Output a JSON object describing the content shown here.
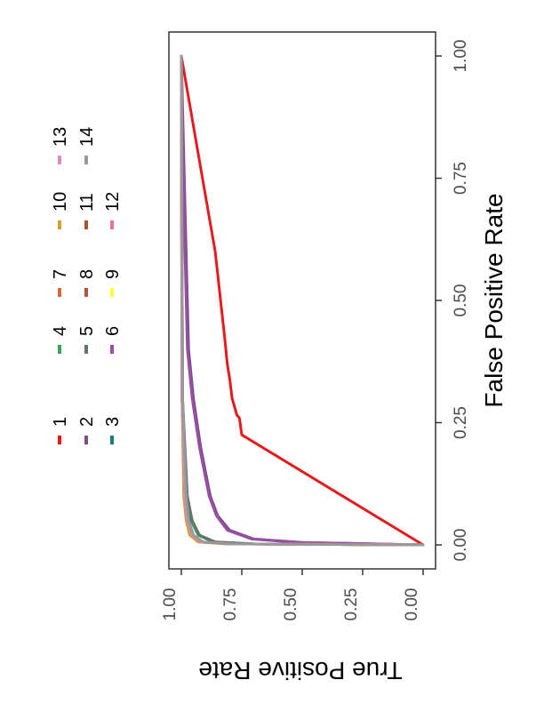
{
  "chart_data": {
    "type": "line",
    "xlabel": "False Positive Rate",
    "ylabel": "True Positive Rate",
    "xlim": [
      0,
      1
    ],
    "ylim": [
      0,
      1
    ],
    "x_ticks": [
      "0.00",
      "0.25",
      "0.50",
      "0.75",
      "1.00"
    ],
    "y_ticks": [
      "0.00",
      "0.25",
      "0.50",
      "0.75",
      "1.00"
    ],
    "grid": false,
    "legend_position": "right",
    "orientation": "rotated 90 degrees clockwise",
    "series": [
      {
        "name": "1",
        "color": "#e41a1c",
        "points": [
          [
            0,
            0
          ],
          [
            0.225,
            0.75
          ],
          [
            0.26,
            0.76
          ],
          [
            0.265,
            0.77
          ],
          [
            0.3,
            0.79
          ],
          [
            0.34,
            0.8
          ],
          [
            0.37,
            0.81
          ],
          [
            0.42,
            0.82
          ],
          [
            0.6,
            0.86
          ],
          [
            0.8,
            0.93
          ],
          [
            1,
            1
          ]
        ]
      },
      {
        "name": "2",
        "color": "#7b4f8a",
        "points": [
          [
            0,
            0
          ],
          [
            0.005,
            0.5
          ],
          [
            0.012,
            0.7
          ],
          [
            0.03,
            0.8
          ],
          [
            0.06,
            0.85
          ],
          [
            0.1,
            0.88
          ],
          [
            0.15,
            0.9
          ],
          [
            0.2,
            0.92
          ],
          [
            0.3,
            0.95
          ],
          [
            0.4,
            0.97
          ],
          [
            0.6,
            0.98
          ],
          [
            0.8,
            0.99
          ],
          [
            1,
            1
          ]
        ]
      },
      {
        "name": "3",
        "color": "#1b7f7f",
        "points": [
          [
            0,
            0
          ],
          [
            0.002,
            0.7
          ],
          [
            0.006,
            0.86
          ],
          [
            0.02,
            0.93
          ],
          [
            0.05,
            0.96
          ],
          [
            0.1,
            0.98
          ],
          [
            0.3,
            0.995
          ],
          [
            1,
            1
          ]
        ]
      },
      {
        "name": "4",
        "color": "#3aa655",
        "points": [
          [
            0,
            0
          ],
          [
            0.002,
            0.72
          ],
          [
            0.006,
            0.87
          ],
          [
            0.02,
            0.93
          ],
          [
            0.04,
            0.95
          ],
          [
            0.08,
            0.97
          ],
          [
            0.12,
            0.985
          ],
          [
            0.3,
            0.995
          ],
          [
            1,
            1
          ]
        ]
      },
      {
        "name": "5",
        "color": "#66756b",
        "points": [
          [
            0,
            0
          ],
          [
            0.002,
            0.71
          ],
          [
            0.006,
            0.86
          ],
          [
            0.02,
            0.925
          ],
          [
            0.05,
            0.955
          ],
          [
            0.1,
            0.975
          ],
          [
            0.3,
            0.995
          ],
          [
            1,
            1
          ]
        ]
      },
      {
        "name": "6",
        "color": "#984ea3",
        "points": [
          [
            0,
            0
          ],
          [
            0.005,
            0.52
          ],
          [
            0.012,
            0.71
          ],
          [
            0.03,
            0.81
          ],
          [
            0.06,
            0.855
          ],
          [
            0.1,
            0.885
          ],
          [
            0.15,
            0.905
          ],
          [
            0.2,
            0.925
          ],
          [
            0.3,
            0.955
          ],
          [
            0.4,
            0.975
          ],
          [
            0.6,
            0.985
          ],
          [
            1,
            1
          ]
        ]
      },
      {
        "name": "7",
        "color": "#d2693c",
        "points": [
          [
            0,
            0
          ],
          [
            0.002,
            0.8
          ],
          [
            0.006,
            0.92
          ],
          [
            0.02,
            0.955
          ],
          [
            0.05,
            0.975
          ],
          [
            0.1,
            0.985
          ],
          [
            0.3,
            0.997
          ],
          [
            1,
            1
          ]
        ]
      },
      {
        "name": "8",
        "color": "#b5543c",
        "points": [
          [
            0,
            0
          ],
          [
            0.002,
            0.8
          ],
          [
            0.006,
            0.92
          ],
          [
            0.02,
            0.955
          ],
          [
            0.05,
            0.975
          ],
          [
            0.1,
            0.985
          ],
          [
            0.3,
            0.997
          ],
          [
            1,
            1
          ]
        ]
      },
      {
        "name": "9",
        "color": "#ffff33",
        "points": [
          [
            0,
            0
          ],
          [
            0.002,
            0.81
          ],
          [
            0.006,
            0.93
          ],
          [
            0.02,
            0.96
          ],
          [
            0.05,
            0.978
          ],
          [
            0.1,
            0.988
          ],
          [
            0.3,
            0.997
          ],
          [
            1,
            1
          ]
        ]
      },
      {
        "name": "10",
        "color": "#d4a02a",
        "points": [
          [
            0,
            0
          ],
          [
            0.002,
            0.82
          ],
          [
            0.006,
            0.93
          ],
          [
            0.02,
            0.965
          ],
          [
            0.05,
            0.98
          ],
          [
            0.1,
            0.99
          ],
          [
            0.3,
            0.997
          ],
          [
            1,
            1
          ]
        ]
      },
      {
        "name": "11",
        "color": "#a65628",
        "points": [
          [
            0,
            0
          ],
          [
            0.002,
            0.8
          ],
          [
            0.006,
            0.92
          ],
          [
            0.02,
            0.955
          ],
          [
            0.05,
            0.975
          ],
          [
            0.1,
            0.985
          ],
          [
            0.3,
            0.997
          ],
          [
            1,
            1
          ]
        ]
      },
      {
        "name": "12",
        "color": "#e7739a",
        "points": [
          [
            0,
            0
          ],
          [
            0.002,
            0.8
          ],
          [
            0.006,
            0.92
          ],
          [
            0.02,
            0.955
          ],
          [
            0.05,
            0.975
          ],
          [
            0.1,
            0.985
          ],
          [
            0.3,
            0.997
          ],
          [
            1,
            1
          ]
        ]
      },
      {
        "name": "13",
        "color": "#d98ec4",
        "points": [
          [
            0,
            0
          ],
          [
            0.002,
            0.8
          ],
          [
            0.006,
            0.92
          ],
          [
            0.02,
            0.955
          ],
          [
            0.05,
            0.975
          ],
          [
            0.1,
            0.985
          ],
          [
            0.3,
            0.997
          ],
          [
            1,
            1
          ]
        ]
      },
      {
        "name": "14",
        "color": "#999999",
        "points": [
          [
            0,
            0
          ],
          [
            0.002,
            0.79
          ],
          [
            0.006,
            0.91
          ],
          [
            0.02,
            0.95
          ],
          [
            0.05,
            0.97
          ],
          [
            0.1,
            0.98
          ],
          [
            0.3,
            0.995
          ],
          [
            1,
            1
          ]
        ]
      }
    ]
  }
}
